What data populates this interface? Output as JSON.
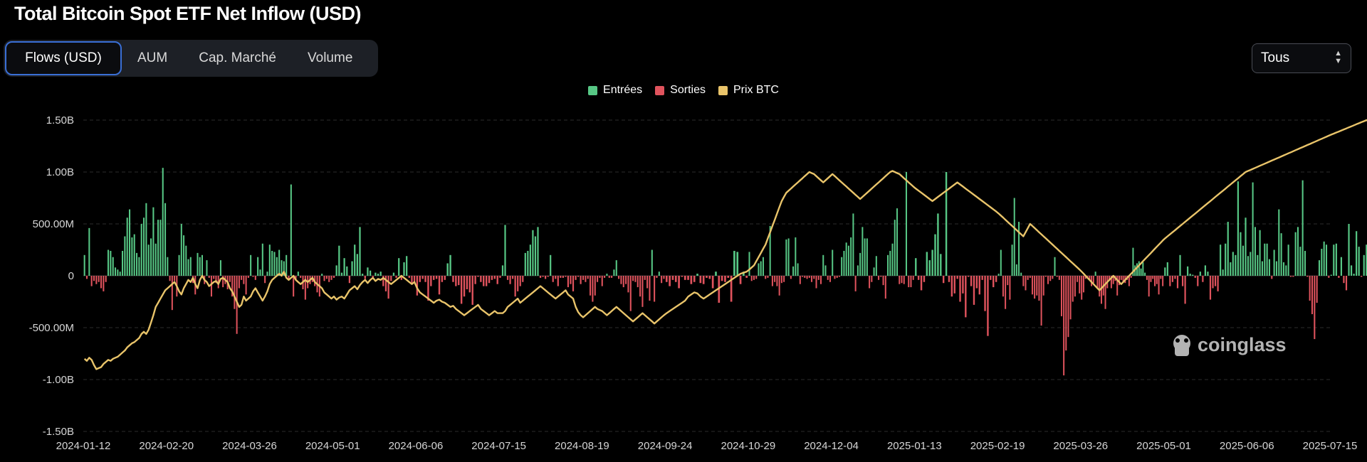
{
  "header": {
    "title": "Total Bitcoin Spot ETF Net Inflow (USD)"
  },
  "tabs": [
    {
      "label": "Flows (USD)",
      "active": true
    },
    {
      "label": "AUM",
      "active": false
    },
    {
      "label": "Cap. Marché",
      "active": false
    },
    {
      "label": "Volume",
      "active": false
    }
  ],
  "range_select": {
    "value": "Tous"
  },
  "watermark": "coinglass",
  "colors": {
    "inflow": "#57c785",
    "outflow": "#e0535d",
    "price": "#e9c46a",
    "accent": "#3a6fd6"
  },
  "chart_data": {
    "type": "bar",
    "legend": [
      {
        "name": "Entrées",
        "color": "#57c785"
      },
      {
        "name": "Sorties",
        "color": "#e0535d"
      },
      {
        "name": "Prix BTC",
        "color": "#e9c46a"
      }
    ],
    "legend_position": "top-center",
    "grid": true,
    "ylim": [
      -1500000000,
      1500000000
    ],
    "yticks": [
      {
        "value": 1500000000,
        "label": "1.50B"
      },
      {
        "value": 1000000000,
        "label": "1.00B"
      },
      {
        "value": 500000000,
        "label": "500.00M"
      },
      {
        "value": 0,
        "label": "0"
      },
      {
        "value": -500000000,
        "label": "-500.00M"
      },
      {
        "value": -1000000000,
        "label": "-1.00B"
      },
      {
        "value": -1500000000,
        "label": "-1.50B"
      }
    ],
    "xticks": [
      "2024-01-12",
      "2024-02-20",
      "2024-03-26",
      "2024-05-01",
      "2024-06-06",
      "2024-07-15",
      "2024-08-19",
      "2024-09-24",
      "2024-10-29",
      "2024-12-04",
      "2025-01-13",
      "2025-02-19",
      "2025-03-26",
      "2025-05-01",
      "2025-06-06",
      "2025-07-15"
    ],
    "flows_millions_by_segment": [
      [
        200,
        -30,
        460,
        -100,
        -50,
        -80,
        -60,
        -120,
        -150,
        -60,
        250,
        240,
        180,
        80,
        60,
        40,
        240,
        380,
        560,
        640,
        370,
        400,
        220,
        180,
        500,
        560,
        700,
        300,
        360,
        660,
        310,
        540,
        540,
        1040,
        700
      ],
      [
        180,
        -50,
        -330,
        -50,
        -200,
        200,
        500,
        390,
        290,
        160,
        180,
        -70,
        -180,
        220,
        180,
        200,
        -80,
        150,
        -20,
        -200,
        -30,
        -70,
        -120,
        150,
        -110,
        -80,
        -130,
        -60,
        -200,
        -320,
        -560,
        -120,
        -40,
        -80,
        -180,
        -20
      ],
      [
        200,
        -10,
        -40,
        180,
        60,
        310,
        -70,
        40,
        300,
        240,
        230,
        180,
        250,
        150,
        140,
        200,
        -30,
        880,
        -200,
        -40,
        40,
        -20,
        -130,
        -230,
        -120,
        -80,
        -60,
        -100,
        -160,
        -200,
        20,
        -50,
        -30,
        -60,
        -40
      ],
      [
        -20,
        100,
        290,
        30,
        170,
        90,
        -70,
        140,
        300,
        210,
        470,
        20,
        -30,
        80,
        50,
        -20,
        30,
        20,
        40,
        -100,
        -150,
        -220,
        -50,
        30,
        -20,
        170,
        -40,
        130,
        190,
        -20,
        -80,
        -60
      ],
      [
        -190,
        -60,
        -30,
        -60,
        -240,
        -100,
        -40,
        -30,
        -180,
        -60,
        -40,
        120,
        200,
        -60,
        -100,
        -90,
        -270,
        -200,
        -130,
        -160,
        -280,
        -80,
        -10,
        -60,
        -100,
        -100,
        -70,
        -40,
        -30,
        -80
      ],
      [
        -20,
        100,
        490,
        -40,
        -80,
        -30,
        -200,
        -150,
        -100,
        -60,
        220,
        240,
        300,
        440,
        380,
        470,
        -20,
        -10,
        -30,
        -10,
        200,
        -60,
        -30,
        -100,
        -20,
        -20,
        -10,
        -110,
        -80,
        -150,
        -40,
        -10,
        -80
      ],
      [
        -40,
        -60,
        -30,
        -190,
        -250,
        -190,
        -60,
        -20,
        -100,
        -20,
        20,
        -20,
        -20,
        60,
        150,
        -30,
        -80,
        -110,
        -80,
        -160,
        -340,
        -50,
        -60,
        -110,
        -200,
        -300,
        -40,
        -120,
        -240,
        250,
        -250,
        -20,
        40,
        -70,
        -30
      ],
      [
        -60,
        -100,
        -40,
        -60,
        -120,
        -10,
        -40,
        -40,
        -80,
        -60,
        20,
        -70,
        -80,
        -20,
        -30,
        -120,
        40,
        -260,
        -50,
        -60,
        -20,
        -250,
        240,
        230,
        -80,
        40,
        -20
      ],
      [
        230,
        -50,
        -40,
        -30,
        120,
        140,
        180,
        -30,
        -20,
        480,
        -100,
        -60,
        -100,
        -190,
        -70,
        -60,
        350,
        360,
        -30,
        90,
        370,
        120,
        -80,
        -10,
        -20,
        -30,
        -20,
        -60,
        -30,
        -120,
        -40,
        -80,
        200,
        100,
        -40,
        -60
      ],
      [
        250,
        -30,
        -20,
        -10,
        180,
        240,
        320,
        290,
        370,
        600,
        -150,
        100,
        220,
        470,
        360,
        360,
        -120,
        -60,
        80,
        190,
        -40,
        -10,
        -90,
        -220,
        200,
        240,
        310,
        540,
        650,
        -80,
        -70,
        -80,
        1000,
        -110,
        -110,
        -40
      ],
      [
        170,
        -40,
        -140,
        -60,
        230,
        150,
        250,
        400,
        600,
        210,
        -70,
        1000,
        -60,
        -200,
        -170,
        -30,
        -250,
        -170,
        -400,
        -10,
        -100,
        -280,
        -120,
        -180,
        -40,
        -340,
        -580,
        -40,
        -110,
        -60
      ],
      [
        20,
        250,
        -200,
        -320,
        -90,
        -230,
        300,
        750,
        110,
        520,
        30,
        -100,
        -140,
        -40,
        -20,
        -180,
        -220,
        -190,
        -240,
        -480,
        -190,
        -10,
        -80,
        -50,
        -30,
        180,
        -10,
        -40,
        -390,
        -960,
        -720,
        -590,
        -420,
        -250,
        -200,
        -60,
        -170
      ],
      [
        -230,
        -160,
        -30,
        -10,
        -40,
        -100,
        -70,
        40,
        -120,
        -200,
        -270,
        -190,
        -320,
        -120,
        -50,
        -120,
        -80,
        -50,
        -190,
        -90,
        -40,
        -60,
        -70,
        -40,
        -100,
        -20,
        270,
        100,
        120,
        140,
        70,
        130,
        30,
        -40,
        -200,
        -60,
        -30,
        -100,
        -80,
        -180,
        -30,
        -100
      ],
      [
        80,
        130,
        -100,
        -60,
        -30,
        -120,
        200,
        -100,
        -270,
        90,
        20,
        10,
        -20,
        -100,
        40,
        -60,
        100,
        40,
        -230,
        -120,
        -100,
        -150,
        300,
        60,
        310,
        520,
        130,
        230,
        200,
        910,
        420,
        290,
        560
      ],
      [
        190,
        230,
        900,
        470,
        200,
        440,
        140,
        310,
        310,
        160,
        -30,
        250,
        140,
        640,
        410,
        130,
        100,
        300,
        -10,
        -10,
        420,
        470,
        280,
        920,
        240,
        -10,
        -240,
        -370,
        -610,
        -260,
        150,
        260,
        330,
        300,
        -20
      ],
      [
        10,
        300,
        310,
        -20,
        180,
        -70,
        -140,
        500,
        100,
        20,
        430,
        280,
        -10,
        200,
        300,
        420,
        110,
        250,
        200,
        300,
        40,
        440,
        210,
        -20,
        270,
        200,
        230,
        1170,
        990,
        -370,
        200,
        780,
        520
      ]
    ],
    "price_path_by_segment": [
      [
        -800,
        -820,
        -790,
        -810,
        -860,
        -900,
        -890,
        -880,
        -850,
        -830,
        -810,
        -820,
        -800,
        -790,
        -780,
        -760,
        -740,
        -720,
        -690,
        -670,
        -650,
        -640,
        -620,
        -600,
        -560,
        -540,
        -560,
        -520,
        -450,
        -380,
        -300,
        -260,
        -220,
        -180,
        -140
      ],
      [
        -120,
        -100,
        -80,
        -60,
        -100,
        -150,
        -180,
        -120,
        -80,
        -40,
        -60,
        -20,
        -80,
        -120,
        -40,
        0,
        -40,
        -60,
        -100,
        -80,
        -60,
        -50,
        -80,
        -30,
        -20,
        -40,
        -60,
        -120,
        -150,
        -200,
        -250,
        -300,
        -280,
        -200,
        -240,
        -220
      ],
      [
        -200,
        -150,
        -120,
        -160,
        -200,
        -240,
        -200,
        -150,
        -80,
        -40,
        -20,
        0,
        20,
        0,
        40,
        -20,
        -40,
        -20,
        0,
        -40,
        -60,
        -80,
        -60,
        -40,
        -60,
        -40,
        -20,
        -60,
        -80,
        -100,
        -120,
        -160,
        -180,
        -200,
        -220
      ],
      [
        -200,
        -230,
        -210,
        -200,
        -220,
        -180,
        -140,
        -120,
        -100,
        -130,
        -90,
        -60,
        -40,
        -70,
        -40,
        -20,
        -50,
        -30,
        -40,
        -20,
        -40,
        -60,
        -80,
        -60,
        -40,
        -20,
        0,
        -20,
        -40,
        -60,
        -80,
        -60
      ],
      [
        -120,
        -160,
        -180,
        -200,
        -220,
        -240,
        -260,
        -240,
        -230,
        -250,
        -260,
        -280,
        -300,
        -290,
        -320,
        -340,
        -360,
        -380,
        -360,
        -340,
        -320,
        -300,
        -280,
        -320,
        -340,
        -360,
        -380,
        -360,
        -340,
        -360
      ],
      [
        -360,
        -360,
        -340,
        -300,
        -280,
        -260,
        -240,
        -220,
        -260,
        -240,
        -220,
        -200,
        -180,
        -160,
        -140,
        -120,
        -100,
        -120,
        -140,
        -160,
        -180,
        -200,
        -220,
        -200,
        -180,
        -160,
        -140,
        -180,
        -200,
        -220,
        -300,
        -350,
        -380
      ],
      [
        -400,
        -380,
        -360,
        -340,
        -320,
        -300,
        -320,
        -330,
        -340,
        -360,
        -380,
        -360,
        -340,
        -320,
        -300,
        -320,
        -340,
        -360,
        -380,
        -400,
        -420,
        -440,
        -420,
        -400,
        -380,
        -360,
        -380,
        -400,
        -420,
        -440,
        -460,
        -440,
        -420,
        -400,
        -380
      ],
      [
        -360,
        -340,
        -320,
        -300,
        -280,
        -260,
        -240,
        -200,
        -180,
        -160,
        -170,
        -200,
        -220,
        -200,
        -180,
        -160,
        -140,
        -120,
        -100,
        -80,
        -60,
        -40,
        -20,
        0,
        20,
        30,
        40
      ],
      [
        60,
        80,
        100,
        140,
        180,
        220,
        260,
        300,
        360,
        420,
        480,
        540,
        600,
        660,
        720,
        760,
        800,
        820,
        840,
        860,
        880,
        900,
        920,
        940,
        960,
        980,
        1000,
        990,
        980,
        960,
        940,
        920,
        900,
        920,
        940,
        960
      ],
      [
        980,
        960,
        940,
        920,
        900,
        880,
        860,
        840,
        820,
        800,
        780,
        760,
        740,
        760,
        780,
        800,
        820,
        840,
        860,
        880,
        900,
        920,
        940,
        960,
        980,
        1000,
        1010,
        1000,
        990,
        980,
        960,
        940,
        920,
        900,
        880,
        860
      ],
      [
        840,
        820,
        800,
        780,
        760,
        740,
        720,
        740,
        760,
        780,
        800,
        820,
        840,
        860,
        880,
        900,
        880,
        860,
        840,
        820,
        800,
        780,
        760,
        740,
        720,
        700,
        680,
        660,
        640,
        620
      ],
      [
        600,
        580,
        560,
        540,
        520,
        500,
        480,
        460,
        440,
        420,
        400,
        380,
        420,
        460,
        500,
        480,
        460,
        440,
        420,
        400,
        380,
        360,
        340,
        320,
        300,
        280,
        260,
        240,
        220,
        200,
        180,
        160,
        140,
        120,
        100,
        80,
        60
      ],
      [
        40,
        20,
        0,
        -20,
        -40,
        -60,
        -80,
        -100,
        -120,
        -140,
        -120,
        -100,
        -80,
        -60,
        -40,
        -20,
        0,
        -20,
        -40,
        -60,
        -80,
        -60,
        -40,
        -20,
        0,
        20,
        40,
        60,
        80,
        100,
        120,
        140,
        160,
        180,
        200,
        220,
        240,
        260,
        280,
        300,
        320,
        340
      ],
      [
        360,
        380,
        400,
        420,
        440,
        460,
        480,
        500,
        520,
        540,
        560,
        580,
        600,
        620,
        640,
        660,
        680,
        700,
        720,
        740,
        760,
        780,
        800,
        820,
        840,
        860,
        880,
        900,
        920,
        940,
        960,
        980,
        1000
      ],
      [
        1010,
        1020,
        1030,
        1040,
        1050,
        1060,
        1070,
        1080,
        1090,
        1100,
        1110,
        1120,
        1130,
        1140,
        1150,
        1160,
        1170,
        1180,
        1190,
        1200,
        1210,
        1220,
        1230,
        1240,
        1250,
        1260,
        1270,
        1280,
        1290,
        1300,
        1310,
        1320,
        1330,
        1340,
        1350
      ],
      [
        1360,
        1370,
        1380,
        1390,
        1400,
        1410,
        1420,
        1430,
        1440,
        1450,
        1460,
        1470,
        1480,
        1490,
        1500,
        1490,
        1480,
        1470,
        1460,
        1450,
        1460,
        1470,
        1480,
        1490,
        1500,
        1490,
        1480,
        1470,
        1460,
        1470,
        1480,
        1490,
        1480
      ]
    ]
  }
}
